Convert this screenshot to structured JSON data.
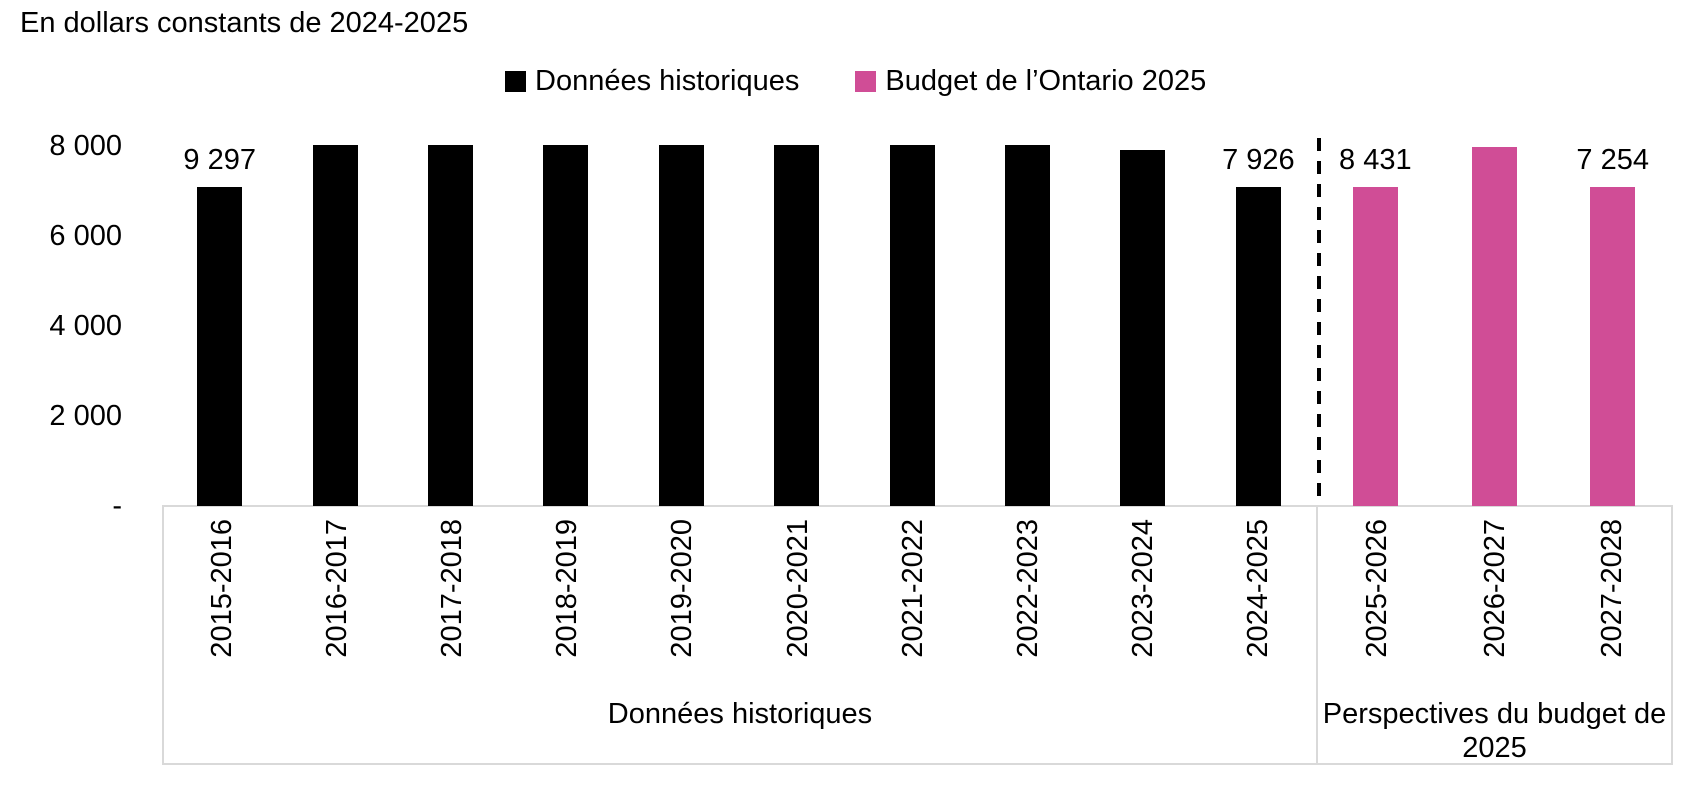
{
  "title": "En dollars constants de 2024-2025",
  "legend": [
    {
      "label": "Données historiques",
      "color": "#000000"
    },
    {
      "label": "Budget de l’Ontario 2025",
      "color": "#D04D96"
    }
  ],
  "y_axis": {
    "ticks": [
      "8 000",
      "6 000",
      "4 000",
      "2 000",
      "-"
    ]
  },
  "groups": [
    {
      "caption": "Données historiques"
    },
    {
      "caption": "Perspectives du budget de 2025"
    }
  ],
  "chart_data": {
    "type": "bar",
    "title": "En dollars constants de 2024-2025",
    "xlabel": "",
    "ylabel": "",
    "ylim": [
      0,
      8000
    ],
    "y_tick_values": [
      0,
      2000,
      4000,
      6000,
      8000
    ],
    "grid": false,
    "legend_position": "top",
    "bars_clipped_at_ylim_max": true,
    "series_colors": {
      "historical": "#000000",
      "budget": "#D04D96"
    },
    "group_captions": [
      "Données historiques",
      "Perspectives du budget de 2025"
    ],
    "bars": [
      {
        "category": "2015-2016",
        "value": 9297,
        "label": "9 297",
        "series": "historical",
        "group": 0,
        "clipped": true,
        "estimated": false
      },
      {
        "category": "2016-2017",
        "value": 8000,
        "label": "",
        "series": "historical",
        "group": 0,
        "clipped": true,
        "estimated": true
      },
      {
        "category": "2017-2018",
        "value": 8000,
        "label": "",
        "series": "historical",
        "group": 0,
        "clipped": true,
        "estimated": true
      },
      {
        "category": "2018-2019",
        "value": 8000,
        "label": "",
        "series": "historical",
        "group": 0,
        "clipped": true,
        "estimated": true
      },
      {
        "category": "2019-2020",
        "value": 8000,
        "label": "",
        "series": "historical",
        "group": 0,
        "clipped": true,
        "estimated": true
      },
      {
        "category": "2020-2021",
        "value": 8000,
        "label": "",
        "series": "historical",
        "group": 0,
        "clipped": true,
        "estimated": true
      },
      {
        "category": "2021-2022",
        "value": 8000,
        "label": "",
        "series": "historical",
        "group": 0,
        "clipped": true,
        "estimated": true
      },
      {
        "category": "2022-2023",
        "value": 8000,
        "label": "",
        "series": "historical",
        "group": 0,
        "clipped": true,
        "estimated": true
      },
      {
        "category": "2023-2024",
        "value": 7880,
        "label": "",
        "series": "historical",
        "group": 0,
        "clipped": false,
        "estimated": true
      },
      {
        "category": "2024-2025",
        "value": 7926,
        "label": "7 926",
        "series": "historical",
        "group": 0,
        "clipped": false,
        "estimated": false
      },
      {
        "category": "2025-2026",
        "value": 8431,
        "label": "8 431",
        "series": "budget",
        "group": 1,
        "clipped": true,
        "estimated": false
      },
      {
        "category": "2026-2027",
        "value": 7950,
        "label": "",
        "series": "budget",
        "group": 1,
        "clipped": false,
        "estimated": true
      },
      {
        "category": "2027-2028",
        "value": 7254,
        "label": "7 254",
        "series": "budget",
        "group": 1,
        "clipped": false,
        "estimated": false
      }
    ]
  }
}
